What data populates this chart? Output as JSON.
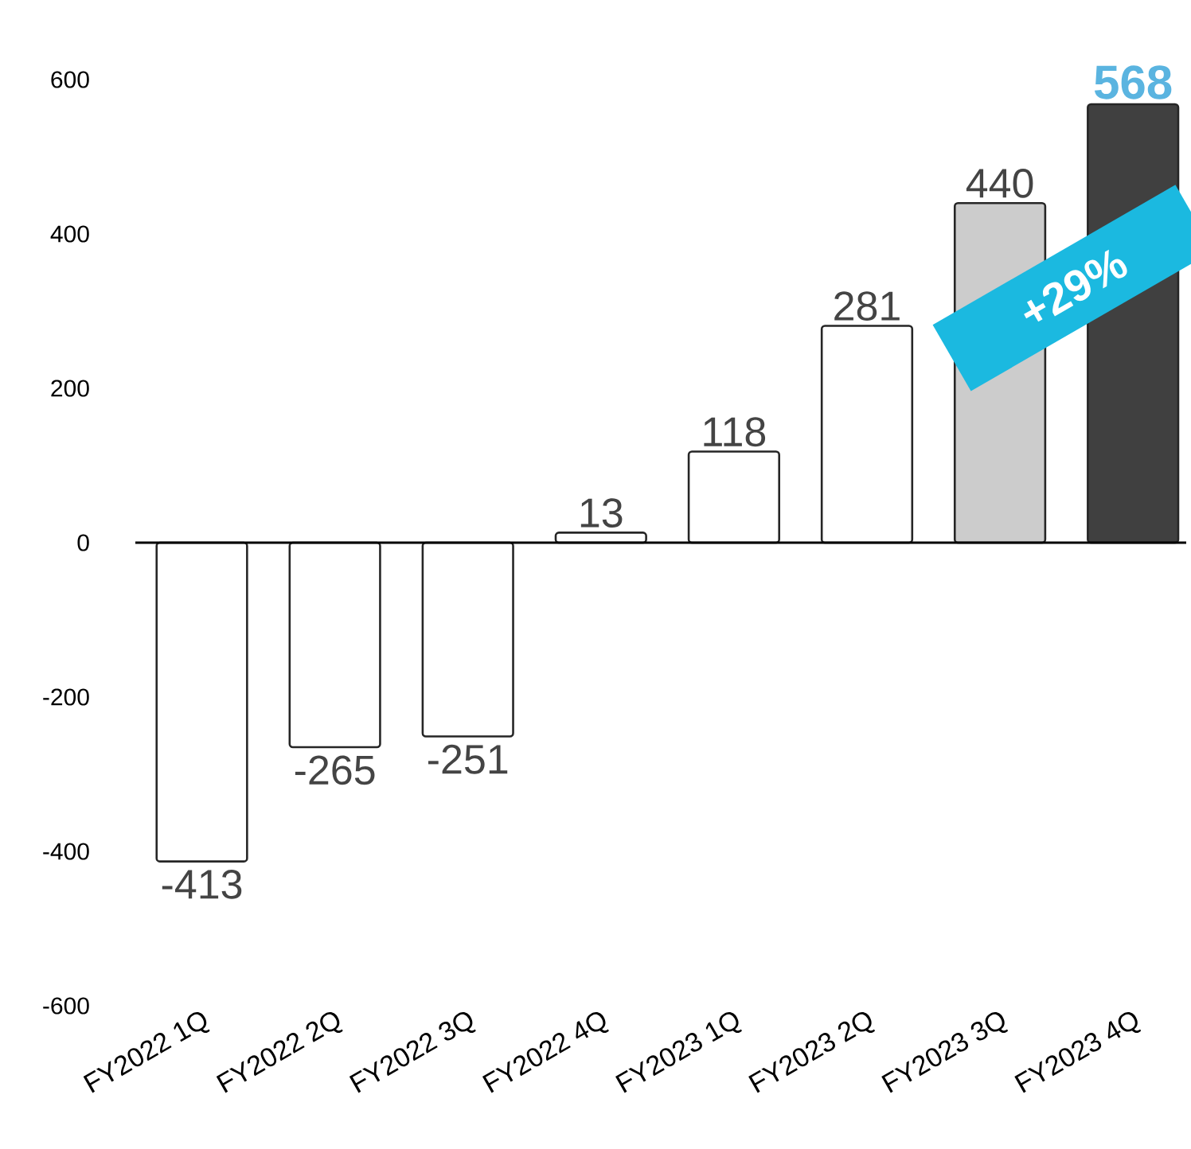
{
  "chart_data": {
    "type": "bar",
    "categories": [
      "FY2022 1Q",
      "FY2022 2Q",
      "FY2022 3Q",
      "FY2022 4Q",
      "FY2023 1Q",
      "FY2023 2Q",
      "FY2023 3Q",
      "FY2023 4Q"
    ],
    "values": [
      -413,
      -265,
      -251,
      13,
      118,
      281,
      440,
      568
    ],
    "colors": [
      "#ffffff",
      "#ffffff",
      "#ffffff",
      "#ffffff",
      "#ffffff",
      "#ffffff",
      "#cccccc",
      "#404040"
    ],
    "ylim": [
      -600,
      600
    ],
    "yticks": [
      -600,
      -400,
      -200,
      0,
      200,
      400,
      600
    ],
    "data_labels": true,
    "annotations": [
      "+29%"
    ]
  }
}
